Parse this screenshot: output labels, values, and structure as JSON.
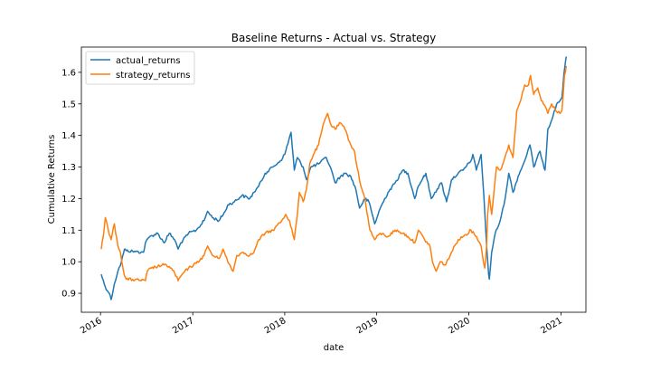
{
  "chart_data": {
    "type": "line",
    "title": "Baseline Returns - Actual vs. Strategy",
    "xlabel": "date",
    "ylabel": "Cumulative Returns",
    "xlim": [
      "2015-10-17",
      "2021-04-10"
    ],
    "ylim": [
      0.84,
      1.68
    ],
    "x_ticks": [
      "2016",
      "2017",
      "2018",
      "2019",
      "2020",
      "2021"
    ],
    "x_tick_dates": [
      "2016-01-01",
      "2017-01-01",
      "2018-01-01",
      "2019-01-01",
      "2020-01-01",
      "2021-01-01"
    ],
    "y_ticks": [
      "0.9",
      "1.0",
      "1.1",
      "1.2",
      "1.3",
      "1.4",
      "1.5",
      "1.6"
    ],
    "y_tick_values": [
      0.9,
      1.0,
      1.1,
      1.2,
      1.3,
      1.4,
      1.5,
      1.6
    ],
    "legend_position": "top-left",
    "grid": false,
    "series": [
      {
        "name": "actual_returns",
        "color": "#1f77b4",
        "points": [
          [
            "2016-01-04",
            0.96
          ],
          [
            "2016-01-20",
            0.92
          ],
          [
            "2016-02-05",
            0.9
          ],
          [
            "2016-02-12",
            0.88
          ],
          [
            "2016-02-25",
            0.93
          ],
          [
            "2016-03-10",
            0.97
          ],
          [
            "2016-03-24",
            1.0
          ],
          [
            "2016-04-05",
            1.04
          ],
          [
            "2016-04-12",
            1.035
          ],
          [
            "2016-05-20",
            1.032
          ],
          [
            "2016-06-20",
            1.03
          ],
          [
            "2016-06-27",
            1.06
          ],
          [
            "2016-07-15",
            1.08
          ],
          [
            "2016-08-15",
            1.09
          ],
          [
            "2016-09-09",
            1.06
          ],
          [
            "2016-09-30",
            1.09
          ],
          [
            "2016-10-21",
            1.07
          ],
          [
            "2016-11-04",
            1.04
          ],
          [
            "2016-11-15",
            1.06
          ],
          [
            "2016-12-15",
            1.09
          ],
          [
            "2017-01-15",
            1.1
          ],
          [
            "2017-02-15",
            1.13
          ],
          [
            "2017-03-01",
            1.16
          ],
          [
            "2017-03-20",
            1.14
          ],
          [
            "2017-04-15",
            1.13
          ],
          [
            "2017-05-10",
            1.16
          ],
          [
            "2017-05-20",
            1.18
          ],
          [
            "2017-06-15",
            1.19
          ],
          [
            "2017-07-15",
            1.21
          ],
          [
            "2017-08-15",
            1.2
          ],
          [
            "2017-09-01",
            1.22
          ],
          [
            "2017-09-20",
            1.24
          ],
          [
            "2017-10-15",
            1.28
          ],
          [
            "2017-11-15",
            1.3
          ],
          [
            "2017-12-15",
            1.32
          ],
          [
            "2018-01-01",
            1.34
          ],
          [
            "2018-01-26",
            1.41
          ],
          [
            "2018-02-08",
            1.29
          ],
          [
            "2018-02-20",
            1.33
          ],
          [
            "2018-03-15",
            1.3
          ],
          [
            "2018-03-28",
            1.26
          ],
          [
            "2018-04-15",
            1.3
          ],
          [
            "2018-05-15",
            1.31
          ],
          [
            "2018-06-15",
            1.33
          ],
          [
            "2018-07-01",
            1.3
          ],
          [
            "2018-07-20",
            1.25
          ],
          [
            "2018-08-10",
            1.27
          ],
          [
            "2018-08-28",
            1.28
          ],
          [
            "2018-09-20",
            1.27
          ],
          [
            "2018-10-10",
            1.23
          ],
          [
            "2018-10-25",
            1.17
          ],
          [
            "2018-11-15",
            1.2
          ],
          [
            "2018-12-01",
            1.19
          ],
          [
            "2018-12-24",
            1.12
          ],
          [
            "2019-01-15",
            1.17
          ],
          [
            "2019-02-15",
            1.22
          ],
          [
            "2019-03-15",
            1.25
          ],
          [
            "2019-04-15",
            1.29
          ],
          [
            "2019-05-05",
            1.28
          ],
          [
            "2019-06-01",
            1.2
          ],
          [
            "2019-06-15",
            1.24
          ],
          [
            "2019-07-15",
            1.28
          ],
          [
            "2019-08-05",
            1.2
          ],
          [
            "2019-08-20",
            1.22
          ],
          [
            "2019-09-15",
            1.25
          ],
          [
            "2019-10-05",
            1.19
          ],
          [
            "2019-10-25",
            1.26
          ],
          [
            "2019-11-20",
            1.28
          ],
          [
            "2019-12-10",
            1.29
          ],
          [
            "2020-01-10",
            1.32
          ],
          [
            "2020-01-17",
            1.34
          ],
          [
            "2020-01-31",
            1.29
          ],
          [
            "2020-02-19",
            1.34
          ],
          [
            "2020-03-01",
            1.21
          ],
          [
            "2020-03-12",
            1.05
          ],
          [
            "2020-03-20",
            0.96
          ],
          [
            "2020-03-23",
            0.945
          ],
          [
            "2020-04-01",
            1.03
          ],
          [
            "2020-04-15",
            1.09
          ],
          [
            "2020-05-01",
            1.12
          ],
          [
            "2020-05-20",
            1.18
          ],
          [
            "2020-06-08",
            1.28
          ],
          [
            "2020-06-25",
            1.22
          ],
          [
            "2020-07-15",
            1.27
          ],
          [
            "2020-08-10",
            1.32
          ],
          [
            "2020-08-31",
            1.37
          ],
          [
            "2020-09-15",
            1.3
          ],
          [
            "2020-10-10",
            1.35
          ],
          [
            "2020-10-30",
            1.29
          ],
          [
            "2020-11-10",
            1.42
          ],
          [
            "2020-11-30",
            1.46
          ],
          [
            "2020-12-15",
            1.5
          ],
          [
            "2020-12-28",
            1.51
          ],
          [
            "2021-01-05",
            1.52
          ],
          [
            "2021-01-12",
            1.59
          ],
          [
            "2021-01-20",
            1.64
          ],
          [
            "2021-01-22",
            1.65
          ]
        ]
      },
      {
        "name": "strategy_returns",
        "color": "#ff7f0e",
        "points": [
          [
            "2016-01-04",
            1.04
          ],
          [
            "2016-01-12",
            1.08
          ],
          [
            "2016-01-20",
            1.14
          ],
          [
            "2016-02-01",
            1.1
          ],
          [
            "2016-02-12",
            1.07
          ],
          [
            "2016-02-25",
            1.12
          ],
          [
            "2016-03-10",
            1.05
          ],
          [
            "2016-03-20",
            1.03
          ],
          [
            "2016-04-05",
            0.955
          ],
          [
            "2016-04-12",
            0.945
          ],
          [
            "2016-06-27",
            0.94
          ],
          [
            "2016-07-05",
            0.97
          ],
          [
            "2016-07-20",
            0.98
          ],
          [
            "2016-08-15",
            0.985
          ],
          [
            "2016-09-09",
            0.99
          ],
          [
            "2016-09-30",
            0.985
          ],
          [
            "2016-10-21",
            0.965
          ],
          [
            "2016-11-04",
            0.94
          ],
          [
            "2016-11-20",
            0.96
          ],
          [
            "2016-12-15",
            0.98
          ],
          [
            "2017-01-15",
            0.995
          ],
          [
            "2017-02-15",
            1.02
          ],
          [
            "2017-03-01",
            1.05
          ],
          [
            "2017-03-20",
            1.02
          ],
          [
            "2017-04-15",
            1.01
          ],
          [
            "2017-05-01",
            1.04
          ],
          [
            "2017-05-20",
            1.0
          ],
          [
            "2017-06-10",
            0.97
          ],
          [
            "2017-06-25",
            1.02
          ],
          [
            "2017-07-20",
            1.03
          ],
          [
            "2017-08-15",
            1.02
          ],
          [
            "2017-09-01",
            1.03
          ],
          [
            "2017-09-20",
            1.07
          ],
          [
            "2017-10-15",
            1.09
          ],
          [
            "2017-11-15",
            1.1
          ],
          [
            "2017-12-20",
            1.13
          ],
          [
            "2018-01-05",
            1.15
          ],
          [
            "2018-01-20",
            1.13
          ],
          [
            "2018-02-08",
            1.07
          ],
          [
            "2018-02-20",
            1.15
          ],
          [
            "2018-02-28",
            1.22
          ],
          [
            "2018-03-15",
            1.19
          ],
          [
            "2018-03-28",
            1.23
          ],
          [
            "2018-04-10",
            1.31
          ],
          [
            "2018-04-25",
            1.34
          ],
          [
            "2018-05-15",
            1.37
          ],
          [
            "2018-06-05",
            1.44
          ],
          [
            "2018-06-20",
            1.47
          ],
          [
            "2018-07-05",
            1.43
          ],
          [
            "2018-07-20",
            1.42
          ],
          [
            "2018-08-10",
            1.44
          ],
          [
            "2018-08-28",
            1.42
          ],
          [
            "2018-09-20",
            1.37
          ],
          [
            "2018-10-05",
            1.35
          ],
          [
            "2018-10-15",
            1.3
          ],
          [
            "2018-10-30",
            1.24
          ],
          [
            "2018-11-15",
            1.2
          ],
          [
            "2018-12-05",
            1.1
          ],
          [
            "2018-12-24",
            1.07
          ],
          [
            "2019-01-15",
            1.09
          ],
          [
            "2019-02-15",
            1.08
          ],
          [
            "2019-03-15",
            1.1
          ],
          [
            "2019-04-15",
            1.09
          ],
          [
            "2019-05-05",
            1.08
          ],
          [
            "2019-06-01",
            1.06
          ],
          [
            "2019-06-15",
            1.1
          ],
          [
            "2019-07-10",
            1.07
          ],
          [
            "2019-07-31",
            1.05
          ],
          [
            "2019-08-10",
            1.0
          ],
          [
            "2019-08-25",
            0.97
          ],
          [
            "2019-09-10",
            1.0
          ],
          [
            "2019-10-01",
            0.99
          ],
          [
            "2019-10-25",
            1.03
          ],
          [
            "2019-11-20",
            1.07
          ],
          [
            "2019-12-10",
            1.08
          ],
          [
            "2020-01-10",
            1.1
          ],
          [
            "2020-02-01",
            1.08
          ],
          [
            "2020-02-19",
            1.05
          ],
          [
            "2020-02-28",
            1.0
          ],
          [
            "2020-03-05",
            0.98
          ],
          [
            "2020-03-12",
            1.05
          ],
          [
            "2020-03-16",
            1.15
          ],
          [
            "2020-03-23",
            1.21
          ],
          [
            "2020-04-01",
            1.15
          ],
          [
            "2020-04-10",
            1.22
          ],
          [
            "2020-04-20",
            1.3
          ],
          [
            "2020-05-05",
            1.29
          ],
          [
            "2020-05-20",
            1.32
          ],
          [
            "2020-06-08",
            1.37
          ],
          [
            "2020-06-25",
            1.33
          ],
          [
            "2020-07-10",
            1.48
          ],
          [
            "2020-07-25",
            1.51
          ],
          [
            "2020-08-10",
            1.56
          ],
          [
            "2020-08-25",
            1.56
          ],
          [
            "2020-09-02",
            1.59
          ],
          [
            "2020-09-15",
            1.53
          ],
          [
            "2020-10-01",
            1.55
          ],
          [
            "2020-10-15",
            1.51
          ],
          [
            "2020-11-01",
            1.49
          ],
          [
            "2020-11-10",
            1.47
          ],
          [
            "2020-11-25",
            1.5
          ],
          [
            "2020-12-10",
            1.48
          ],
          [
            "2020-12-28",
            1.47
          ],
          [
            "2021-01-05",
            1.48
          ],
          [
            "2021-01-10",
            1.53
          ],
          [
            "2021-01-15",
            1.59
          ],
          [
            "2021-01-22",
            1.62
          ]
        ]
      }
    ]
  }
}
